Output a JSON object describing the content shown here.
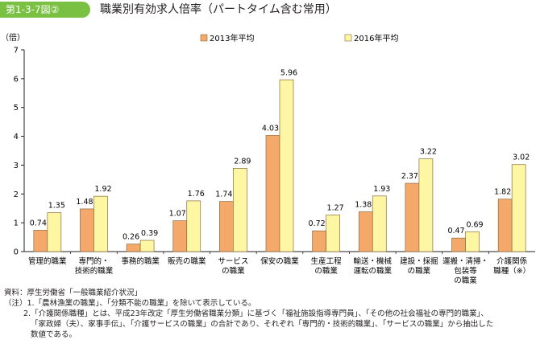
{
  "header": {
    "figure_number": "第1-3-7図②",
    "title": "職業別有効求人倍率（パートタイム含む常用）"
  },
  "chart_data": {
    "type": "bar",
    "ylabel": "（倍）",
    "ylim": [
      0,
      7
    ],
    "yticks": [
      "0",
      "1",
      "2",
      "3",
      "4",
      "5",
      "6",
      "7"
    ],
    "grid": false,
    "legend_position": "top",
    "categories": [
      [
        "管理的職業"
      ],
      [
        "専門的・",
        "技術的職業"
      ],
      [
        "事務的職業"
      ],
      [
        "販売の職業"
      ],
      [
        "サービス",
        "の職業"
      ],
      [
        "保安の職業"
      ],
      [
        "生産工程",
        "の職業"
      ],
      [
        "輸送・機械",
        "運転の職業"
      ],
      [
        "建設・採掘",
        "の職業"
      ],
      [
        "運搬・清掃・",
        "包装等",
        "の職業"
      ],
      [
        "介護関係",
        "職種（※）"
      ]
    ],
    "series": [
      {
        "name": "2013年平均",
        "color": "#f4a86a",
        "values": [
          0.74,
          1.48,
          0.26,
          1.07,
          1.74,
          4.03,
          0.72,
          1.38,
          2.37,
          0.47,
          1.82
        ],
        "labels": [
          "0.74",
          "1.48",
          "0.26",
          "1.07",
          "1.74",
          "4.03",
          "0.72",
          "1.38",
          "2.37",
          "0.47",
          "1.82"
        ]
      },
      {
        "name": "2016年平均",
        "color": "#fdf6a3",
        "values": [
          1.35,
          1.92,
          0.39,
          1.76,
          2.89,
          5.96,
          1.27,
          1.93,
          3.22,
          0.69,
          3.02
        ],
        "labels": [
          "1.35",
          "1.92",
          "0.39",
          "1.76",
          "2.89",
          "5.96",
          "1.27",
          "1.93",
          "3.22",
          "0.69",
          "3.02"
        ]
      }
    ]
  },
  "notes": {
    "source": "資料：厚生労働省「一般職業紹介状況」",
    "note1": "（注）1.「農林漁業の職業」、「分類不能の職業」を除いて表示している。",
    "note2_line1": "2.「介護関係職種」とは、平成23年改定「厚生労働省職業分類」に基づく「福祉施設指導専門員」、「その他の社会福祉の専門的職業」、",
    "note2_line2": "「家政婦（夫）、家事手伝」、「介護サービスの職業」の合計であり、それぞれ「専門的・技術的職業」、「サービスの職業」から抽出した",
    "note2_line3": "数値である。"
  }
}
